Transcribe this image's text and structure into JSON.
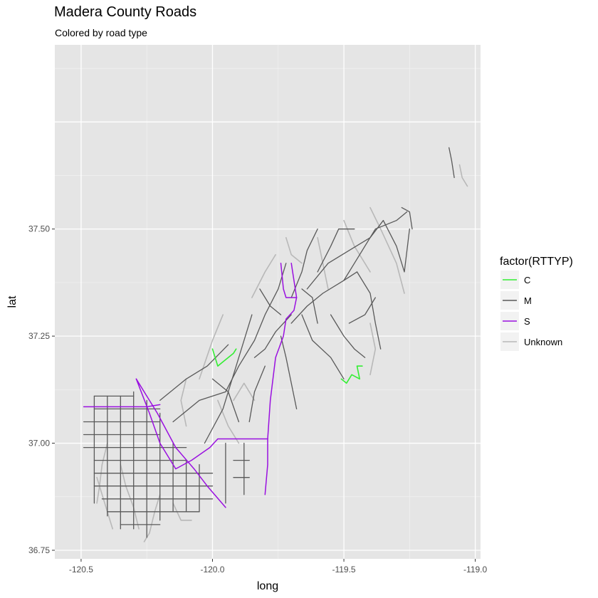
{
  "chart_data": {
    "type": "line",
    "title": "Madera County Roads",
    "subtitle": "Colored by road type",
    "xlabel": "long",
    "ylabel": "lat",
    "xlim": [
      -120.6,
      -118.98
    ],
    "ylim": [
      36.73,
      37.93
    ],
    "x_ticks": [
      -120.5,
      -120.0,
      -119.5,
      -119.0
    ],
    "x_tick_labels": [
      "-120.5",
      "-120.0",
      "-119.5",
      "-119.0"
    ],
    "y_ticks": [
      36.75,
      37.0,
      37.25,
      37.5
    ],
    "y_tick_labels": [
      "36.75",
      "37.00",
      "37.25",
      "37.50"
    ],
    "grid": true,
    "legend": {
      "title": "factor(RTTYP)",
      "position": "right",
      "entries": [
        "C",
        "M",
        "S",
        "Unknown"
      ]
    },
    "colors": {
      "C": "#33ee33",
      "M": "#595959",
      "S": "#9a10e0",
      "Unknown": "#b8b8b8",
      "panel": "#e5e5e5"
    },
    "series": [
      {
        "name": "S",
        "lines": [
          [
            [
              -120.49,
              37.085
            ],
            [
              -120.37,
              37.085
            ],
            [
              -120.25,
              37.085
            ],
            [
              -120.2,
              37.09
            ]
          ],
          [
            [
              -120.29,
              37.15
            ],
            [
              -120.25,
              37.11
            ],
            [
              -120.21,
              37.07
            ],
            [
              -120.14,
              36.99
            ],
            [
              -120.07,
              36.94
            ],
            [
              -120.02,
              36.9
            ],
            [
              -119.95,
              36.85
            ]
          ],
          [
            [
              -120.29,
              37.15
            ],
            [
              -120.24,
              37.07
            ],
            [
              -120.2,
              37.0
            ],
            [
              -120.14,
              36.94
            ],
            [
              -120.08,
              36.96
            ],
            [
              -120.01,
              36.99
            ],
            [
              -119.98,
              37.01
            ],
            [
              -119.89,
              37.01
            ],
            [
              -119.79,
              37.01
            ]
          ],
          [
            [
              -119.79,
              37.01
            ],
            [
              -119.79,
              36.95
            ],
            [
              -119.8,
              36.88
            ]
          ],
          [
            [
              -119.79,
              37.01
            ],
            [
              -119.78,
              37.1
            ],
            [
              -119.76,
              37.2
            ],
            [
              -119.73,
              37.25
            ],
            [
              -119.72,
              37.29
            ],
            [
              -119.69,
              37.31
            ],
            [
              -119.68,
              37.34
            ]
          ],
          [
            [
              -119.68,
              37.34
            ],
            [
              -119.72,
              37.34
            ],
            [
              -119.73,
              37.36
            ],
            [
              -119.74,
              37.42
            ]
          ],
          [
            [
              -119.68,
              37.34
            ],
            [
              -119.69,
              37.38
            ],
            [
              -119.7,
              37.42
            ]
          ]
        ]
      },
      {
        "name": "C",
        "lines": [
          [
            [
              -120.0,
              37.22
            ],
            [
              -119.99,
              37.2
            ],
            [
              -119.98,
              37.18
            ],
            [
              -119.96,
              37.19
            ],
            [
              -119.94,
              37.2
            ],
            [
              -119.92,
              37.21
            ],
            [
              -119.91,
              37.22
            ]
          ],
          [
            [
              -119.51,
              37.15
            ],
            [
              -119.49,
              37.14
            ],
            [
              -119.47,
              37.16
            ],
            [
              -119.44,
              37.15
            ],
            [
              -119.45,
              37.18
            ],
            [
              -119.43,
              37.18
            ]
          ]
        ]
      },
      {
        "name": "M",
        "lines": [
          [
            [
              -120.49,
              37.05
            ],
            [
              -120.2,
              37.05
            ]
          ],
          [
            [
              -120.49,
              37.02
            ],
            [
              -120.2,
              37.02
            ]
          ],
          [
            [
              -120.49,
              36.99
            ],
            [
              -120.1,
              36.99
            ]
          ],
          [
            [
              -120.45,
              36.96
            ],
            [
              -120.1,
              36.96
            ]
          ],
          [
            [
              -120.45,
              36.93
            ],
            [
              -120.0,
              36.93
            ]
          ],
          [
            [
              -120.45,
              36.9
            ],
            [
              -120.0,
              36.9
            ]
          ],
          [
            [
              -120.42,
              36.87
            ],
            [
              -120.0,
              36.87
            ]
          ],
          [
            [
              -120.4,
              36.84
            ],
            [
              -120.05,
              36.84
            ]
          ],
          [
            [
              -120.35,
              36.81
            ],
            [
              -120.2,
              36.81
            ]
          ],
          [
            [
              -120.45,
              37.11
            ],
            [
              -120.3,
              37.11
            ]
          ],
          [
            [
              -120.45,
              37.08
            ],
            [
              -120.2,
              37.08
            ]
          ],
          [
            [
              -120.45,
              37.11
            ],
            [
              -120.45,
              36.86
            ]
          ],
          [
            [
              -120.4,
              37.11
            ],
            [
              -120.4,
              36.83
            ]
          ],
          [
            [
              -120.35,
              37.11
            ],
            [
              -120.35,
              36.8
            ]
          ],
          [
            [
              -120.3,
              37.12
            ],
            [
              -120.3,
              36.8
            ]
          ],
          [
            [
              -120.25,
              37.1
            ],
            [
              -120.25,
              36.78
            ]
          ],
          [
            [
              -120.2,
              37.07
            ],
            [
              -120.2,
              36.82
            ]
          ],
          [
            [
              -120.15,
              37.0
            ],
            [
              -120.15,
              36.84
            ]
          ],
          [
            [
              -120.1,
              36.96
            ],
            [
              -120.1,
              36.84
            ]
          ],
          [
            [
              -120.05,
              36.95
            ],
            [
              -120.05,
              36.84
            ]
          ],
          [
            [
              -119.95,
              37.0
            ],
            [
              -119.95,
              36.86
            ]
          ],
          [
            [
              -119.92,
              36.96
            ],
            [
              -119.86,
              36.96
            ]
          ],
          [
            [
              -119.92,
              36.92
            ],
            [
              -119.86,
              36.92
            ]
          ],
          [
            [
              -119.88,
              37.0
            ],
            [
              -119.88,
              36.88
            ]
          ],
          [
            [
              -120.2,
              37.1
            ],
            [
              -120.1,
              37.15
            ],
            [
              -120.02,
              37.18
            ],
            [
              -119.94,
              37.23
            ]
          ],
          [
            [
              -120.15,
              37.05
            ],
            [
              -120.05,
              37.1
            ],
            [
              -119.95,
              37.12
            ]
          ],
          [
            [
              -120.03,
              37.0
            ],
            [
              -119.96,
              37.08
            ],
            [
              -119.9,
              37.2
            ],
            [
              -119.85,
              37.3
            ]
          ],
          [
            [
              -119.95,
              37.12
            ],
            [
              -119.9,
              37.18
            ],
            [
              -119.84,
              37.24
            ],
            [
              -119.8,
              37.3
            ],
            [
              -119.75,
              37.36
            ],
            [
              -119.72,
              37.42
            ]
          ],
          [
            [
              -119.86,
              37.05
            ],
            [
              -119.84,
              37.12
            ],
            [
              -119.8,
              37.18
            ]
          ],
          [
            [
              -119.9,
              37.05
            ],
            [
              -119.94,
              37.12
            ],
            [
              -120.0,
              37.15
            ]
          ],
          [
            [
              -119.7,
              37.28
            ],
            [
              -119.64,
              37.32
            ],
            [
              -119.58,
              37.35
            ],
            [
              -119.5,
              37.38
            ],
            [
              -119.45,
              37.4
            ]
          ],
          [
            [
              -119.66,
              37.3
            ],
            [
              -119.62,
              37.24
            ],
            [
              -119.55,
              37.2
            ],
            [
              -119.5,
              37.15
            ]
          ],
          [
            [
              -119.74,
              37.25
            ],
            [
              -119.72,
              37.2
            ],
            [
              -119.7,
              37.14
            ],
            [
              -119.68,
              37.08
            ]
          ],
          [
            [
              -119.7,
              37.34
            ],
            [
              -119.66,
              37.4
            ],
            [
              -119.64,
              37.45
            ],
            [
              -119.6,
              37.5
            ]
          ],
          [
            [
              -119.64,
              37.36
            ],
            [
              -119.56,
              37.42
            ],
            [
              -119.48,
              37.45
            ],
            [
              -119.4,
              37.48
            ],
            [
              -119.35,
              37.52
            ]
          ],
          [
            [
              -119.5,
              37.38
            ],
            [
              -119.44,
              37.44
            ],
            [
              -119.38,
              37.5
            ],
            [
              -119.3,
              37.52
            ],
            [
              -119.26,
              37.54
            ]
          ],
          [
            [
              -119.45,
              37.4
            ],
            [
              -119.4,
              37.35
            ],
            [
              -119.38,
              37.28
            ],
            [
              -119.36,
              37.22
            ]
          ],
          [
            [
              -119.55,
              37.3
            ],
            [
              -119.5,
              37.25
            ],
            [
              -119.46,
              37.22
            ],
            [
              -119.42,
              37.2
            ]
          ],
          [
            [
              -119.6,
              37.4
            ],
            [
              -119.55,
              37.46
            ],
            [
              -119.52,
              37.5
            ],
            [
              -119.46,
              37.5
            ]
          ],
          [
            [
              -119.35,
              37.52
            ],
            [
              -119.3,
              37.46
            ],
            [
              -119.27,
              37.4
            ],
            [
              -119.25,
              37.5
            ]
          ],
          [
            [
              -119.28,
              37.55
            ],
            [
              -119.25,
              37.54
            ],
            [
              -119.24,
              37.5
            ]
          ],
          [
            [
              -119.1,
              37.69
            ],
            [
              -119.09,
              37.66
            ],
            [
              -119.08,
              37.62
            ]
          ],
          [
            [
              -119.7,
              37.3
            ],
            [
              -119.76,
              37.26
            ],
            [
              -119.8,
              37.22
            ],
            [
              -119.84,
              37.2
            ]
          ],
          [
            [
              -119.6,
              37.28
            ],
            [
              -119.62,
              37.34
            ],
            [
              -119.66,
              37.36
            ]
          ],
          [
            [
              -119.82,
              37.36
            ],
            [
              -119.78,
              37.32
            ],
            [
              -119.74,
              37.3
            ]
          ],
          [
            [
              -119.48,
              37.28
            ],
            [
              -119.42,
              37.3
            ],
            [
              -119.38,
              37.34
            ]
          ]
        ]
      },
      {
        "name": "Unknown",
        "lines": [
          [
            [
              -120.4,
              37.0
            ],
            [
              -120.42,
              36.95
            ],
            [
              -120.43,
              36.9
            ],
            [
              -120.44,
              36.86
            ]
          ],
          [
            [
              -120.35,
              36.95
            ],
            [
              -120.33,
              36.9
            ],
            [
              -120.3,
              36.85
            ],
            [
              -120.28,
              36.8
            ]
          ],
          [
            [
              -120.2,
              36.88
            ],
            [
              -120.22,
              36.84
            ],
            [
              -120.24,
              36.79
            ],
            [
              -120.26,
              36.77
            ]
          ],
          [
            [
              -120.44,
              36.92
            ],
            [
              -120.41,
              36.86
            ],
            [
              -120.38,
              36.8
            ]
          ],
          [
            [
              -120.15,
              36.86
            ],
            [
              -120.12,
              36.82
            ],
            [
              -120.08,
              36.82
            ]
          ],
          [
            [
              -119.98,
              37.1
            ],
            [
              -119.94,
              37.04
            ],
            [
              -119.9,
              37.0
            ]
          ],
          [
            [
              -120.05,
              37.15
            ],
            [
              -120.0,
              37.24
            ],
            [
              -119.96,
              37.3
            ]
          ],
          [
            [
              -119.85,
              37.34
            ],
            [
              -119.8,
              37.4
            ],
            [
              -119.76,
              37.44
            ]
          ],
          [
            [
              -119.4,
              37.55
            ],
            [
              -119.36,
              37.5
            ],
            [
              -119.3,
              37.42
            ],
            [
              -119.27,
              37.35
            ]
          ],
          [
            [
              -119.5,
              37.52
            ],
            [
              -119.46,
              37.46
            ],
            [
              -119.4,
              37.4
            ]
          ],
          [
            [
              -119.6,
              37.48
            ],
            [
              -119.58,
              37.42
            ],
            [
              -119.56,
              37.36
            ]
          ],
          [
            [
              -119.72,
              37.48
            ],
            [
              -119.7,
              37.44
            ],
            [
              -119.66,
              37.42
            ]
          ],
          [
            [
              -119.4,
              37.28
            ],
            [
              -119.38,
              37.22
            ],
            [
              -119.4,
              37.16
            ]
          ],
          [
            [
              -119.06,
              37.65
            ],
            [
              -119.05,
              37.62
            ],
            [
              -119.03,
              37.6
            ]
          ],
          [
            [
              -120.1,
              37.15
            ],
            [
              -120.12,
              37.1
            ],
            [
              -120.1,
              37.04
            ]
          ],
          [
            [
              -119.92,
              37.1
            ],
            [
              -119.88,
              37.14
            ],
            [
              -119.84,
              37.1
            ]
          ]
        ]
      }
    ]
  }
}
